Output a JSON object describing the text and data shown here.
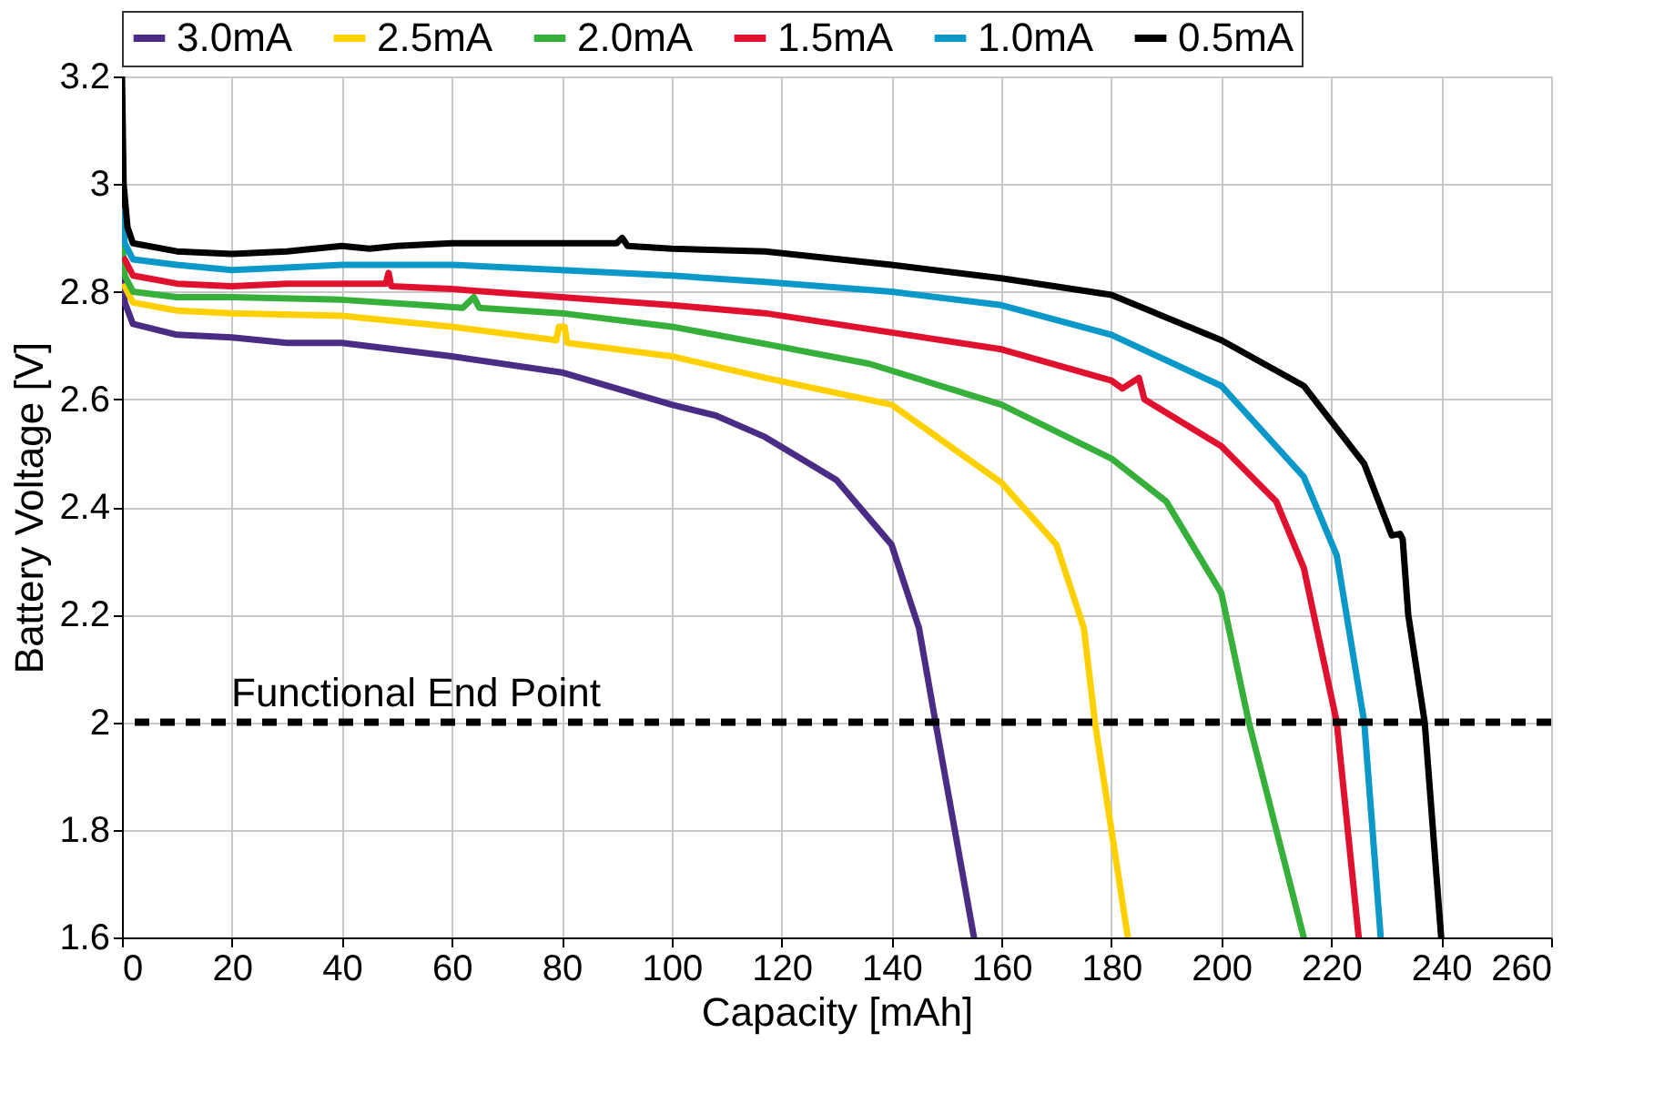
{
  "chart_data": {
    "type": "line",
    "xlabel": "Capacity [mAh]",
    "ylabel": "Battery Voltage [V]",
    "xlim": [
      0,
      260
    ],
    "xticks": [
      0,
      20,
      40,
      60,
      80,
      100,
      120,
      140,
      160,
      180,
      200,
      220,
      240,
      260
    ],
    "ylim": [
      1.6,
      3.2
    ],
    "yticks": [
      1.6,
      1.8,
      2,
      2.2,
      2.4,
      2.6,
      2.8,
      3,
      3.2
    ],
    "grid": true,
    "legend": "top",
    "marker": "none",
    "line_style": "solid",
    "ref_lines": [
      {
        "axis": "y",
        "value": 2,
        "label": "Functional End Point",
        "color": "#000000",
        "line_style": "dashed"
      }
    ],
    "series": [
      {
        "name": "3.0mA",
        "color": "#4b2c85",
        "x": [
          0,
          0.5,
          2,
          10,
          20,
          30,
          40,
          60,
          80,
          90,
          100,
          108,
          117,
          130,
          140,
          145,
          148,
          155
        ],
        "values": [
          2.85,
          2.78,
          2.74,
          2.72,
          2.715,
          2.705,
          2.705,
          2.68,
          2.65,
          2.62,
          2.59,
          2.57,
          2.53,
          2.45,
          2.33,
          2.175,
          2.0,
          1.6
        ]
      },
      {
        "name": "2.5mA",
        "color": "#ffd000",
        "x": [
          0.5,
          2,
          10,
          20,
          40,
          60,
          79,
          79.5,
          80.5,
          81,
          100,
          117,
          140,
          160,
          170,
          175,
          177,
          183
        ],
        "values": [
          2.81,
          2.78,
          2.765,
          2.76,
          2.755,
          2.735,
          2.71,
          2.735,
          2.735,
          2.705,
          2.68,
          2.64,
          2.59,
          2.445,
          2.33,
          2.175,
          2.0,
          1.6
        ]
      },
      {
        "name": "2.0mA",
        "color": "#36b03a",
        "x": [
          0,
          0.5,
          2,
          10,
          20,
          40,
          55,
          62,
          64,
          65,
          80,
          100,
          117,
          136,
          160,
          180,
          190,
          200,
          205,
          215
        ],
        "values": [
          2.9,
          2.83,
          2.8,
          2.79,
          2.79,
          2.785,
          2.775,
          2.77,
          2.79,
          2.77,
          2.76,
          2.735,
          2.703,
          2.666,
          2.59,
          2.49,
          2.41,
          2.24,
          2.0,
          1.6
        ]
      },
      {
        "name": "1.5mA",
        "color": "#e0102f",
        "x": [
          0.5,
          2,
          10,
          20,
          30,
          40,
          48,
          48.5,
          49,
          60,
          80,
          100,
          117,
          160,
          180,
          182,
          185,
          186,
          200,
          210,
          215,
          221,
          225
        ],
        "values": [
          2.86,
          2.83,
          2.815,
          2.81,
          2.815,
          2.815,
          2.815,
          2.835,
          2.81,
          2.805,
          2.79,
          2.775,
          2.76,
          2.693,
          2.635,
          2.62,
          2.64,
          2.6,
          2.513,
          2.41,
          2.287,
          2.0,
          1.6
        ]
      },
      {
        "name": "1.0mA",
        "color": "#0a98c8",
        "x": [
          0,
          0.5,
          2,
          10,
          20,
          30,
          40,
          60,
          80,
          100,
          117,
          140,
          160,
          180,
          200,
          215,
          221,
          226,
          229
        ],
        "values": [
          2.95,
          2.89,
          2.86,
          2.85,
          2.84,
          2.845,
          2.85,
          2.85,
          2.84,
          2.83,
          2.818,
          2.8,
          2.775,
          2.72,
          2.625,
          2.456,
          2.31,
          2.0,
          1.6
        ]
      },
      {
        "name": "0.5mA",
        "color": "#000000",
        "x": [
          0,
          0.3,
          1,
          2,
          10,
          20,
          30,
          40,
          45,
          50,
          60,
          70,
          80,
          90,
          91,
          92,
          100,
          117,
          140,
          160,
          180,
          200,
          215,
          226,
          231,
          232.5,
          233,
          234,
          237,
          240
        ],
        "values": [
          3.2,
          3.0,
          2.92,
          2.89,
          2.875,
          2.87,
          2.875,
          2.885,
          2.88,
          2.885,
          2.89,
          2.89,
          2.89,
          2.89,
          2.9,
          2.885,
          2.88,
          2.875,
          2.85,
          2.825,
          2.794,
          2.71,
          2.625,
          2.48,
          2.347,
          2.35,
          2.34,
          2.2,
          2.0,
          1.6
        ]
      }
    ]
  }
}
